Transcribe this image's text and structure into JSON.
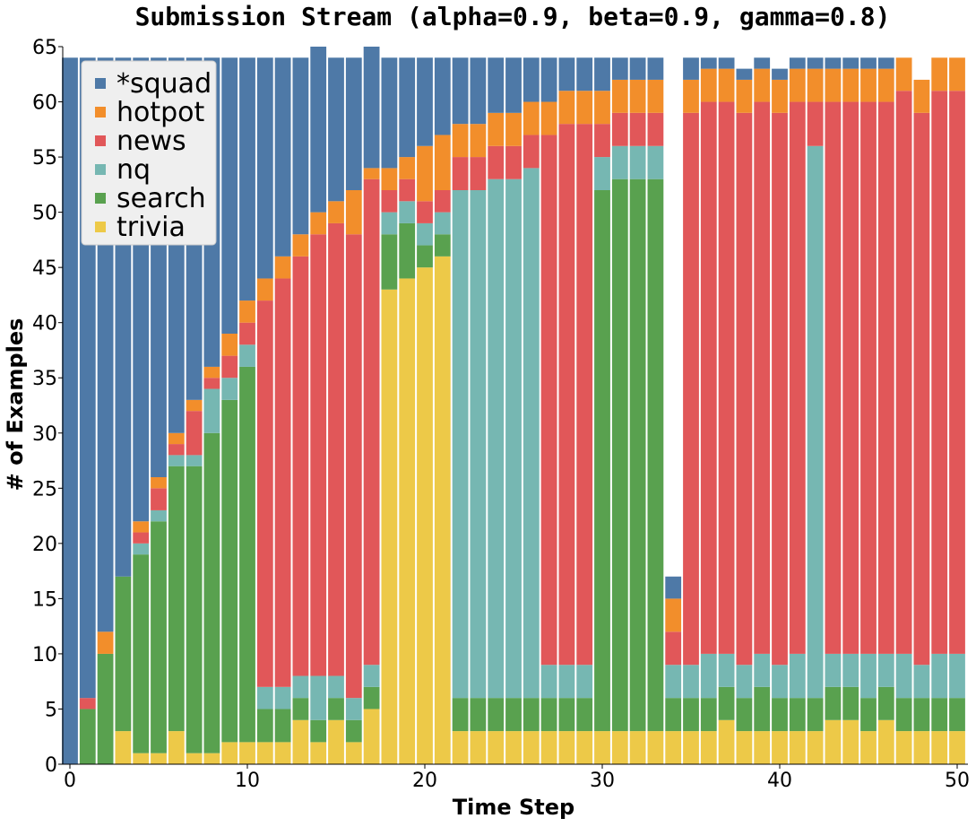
{
  "chart_data": {
    "type": "bar",
    "stacked": true,
    "title": "Submission Stream (alpha=0.9, beta=0.9, gamma=0.8)",
    "xlabel": "Time Step",
    "ylabel": "# of Examples",
    "xlim": [
      0,
      50
    ],
    "ylim": [
      0,
      65
    ],
    "xticks": [
      0,
      10,
      20,
      30,
      40,
      50
    ],
    "yticks": [
      0,
      5,
      10,
      15,
      20,
      25,
      30,
      35,
      40,
      45,
      50,
      55,
      60,
      65
    ],
    "grid": false,
    "legend_position": "top-left",
    "x": [
      0,
      1,
      2,
      3,
      4,
      5,
      6,
      7,
      8,
      9,
      10,
      11,
      12,
      13,
      14,
      15,
      16,
      17,
      18,
      19,
      20,
      21,
      22,
      23,
      24,
      25,
      26,
      27,
      28,
      29,
      30,
      31,
      32,
      33,
      34,
      35,
      36,
      37,
      38,
      39,
      40,
      41,
      42,
      43,
      44,
      45,
      46,
      47,
      48,
      49,
      50
    ],
    "series": [
      {
        "name": "trivia",
        "color": "#edc948",
        "values": [
          0,
          0,
          0,
          3,
          1,
          1,
          3,
          1,
          1,
          2,
          2,
          2,
          2,
          4,
          2,
          4,
          2,
          5,
          43,
          44,
          45,
          46,
          3,
          3,
          3,
          3,
          3,
          3,
          3,
          3,
          3,
          3,
          3,
          3,
          3,
          3,
          3,
          4,
          3,
          3,
          3,
          3,
          3,
          4,
          4,
          3,
          4,
          3,
          3,
          3,
          3
        ]
      },
      {
        "name": "search",
        "color": "#59a14f",
        "values": [
          0,
          5,
          10,
          14,
          18,
          21,
          24,
          26,
          29,
          31,
          34,
          3,
          3,
          2,
          2,
          2,
          2,
          2,
          5,
          5,
          2,
          2,
          3,
          3,
          3,
          3,
          3,
          3,
          3,
          3,
          49,
          50,
          50,
          50,
          3,
          3,
          3,
          3,
          3,
          4,
          3,
          3,
          3,
          3,
          3,
          3,
          3,
          3,
          3,
          3,
          3
        ]
      },
      {
        "name": "nq",
        "color": "#76b7b2",
        "values": [
          0,
          0,
          0,
          0,
          1,
          1,
          1,
          1,
          4,
          2,
          2,
          2,
          2,
          2,
          4,
          2,
          2,
          2,
          2,
          2,
          2,
          2,
          46,
          46,
          47,
          47,
          48,
          3,
          3,
          3,
          3,
          3,
          3,
          3,
          3,
          3,
          4,
          3,
          3,
          3,
          3,
          4,
          50,
          3,
          3,
          4,
          3,
          4,
          3,
          4,
          4
        ]
      },
      {
        "name": "news",
        "color": "#e15759",
        "values": [
          0,
          1,
          0,
          0,
          1,
          2,
          1,
          4,
          1,
          2,
          2,
          35,
          37,
          38,
          40,
          41,
          42,
          44,
          2,
          2,
          2,
          2,
          3,
          3,
          3,
          3,
          3,
          48,
          49,
          49,
          3,
          3,
          3,
          3,
          3,
          50,
          50,
          50,
          50,
          50,
          50,
          50,
          4,
          50,
          50,
          50,
          50,
          51,
          50,
          51,
          51
        ]
      },
      {
        "name": "hotpot",
        "color": "#f28e2b",
        "values": [
          0,
          0,
          2,
          0,
          1,
          1,
          1,
          1,
          1,
          2,
          2,
          2,
          2,
          2,
          2,
          2,
          4,
          1,
          2,
          2,
          5,
          5,
          3,
          3,
          3,
          3,
          3,
          3,
          3,
          3,
          3,
          3,
          3,
          3,
          3,
          3,
          3,
          3,
          3,
          3,
          3,
          3,
          3,
          3,
          3,
          3,
          3,
          3,
          3,
          3,
          3
        ]
      },
      {
        "name": "*squad",
        "color": "#4e79a7",
        "values": [
          64,
          58,
          52,
          47,
          42,
          38,
          34,
          31,
          28,
          25,
          22,
          20,
          18,
          16,
          15,
          13,
          12,
          11,
          10,
          9,
          8,
          7,
          6,
          6,
          5,
          5,
          4,
          4,
          3,
          3,
          3,
          2,
          2,
          2,
          2,
          2,
          1,
          1,
          1,
          1,
          1,
          1,
          1,
          1,
          1,
          1,
          1,
          0,
          0,
          0,
          0
        ]
      }
    ],
    "legend_order": [
      "*squad",
      "hotpot",
      "news",
      "nq",
      "search",
      "trivia"
    ]
  }
}
